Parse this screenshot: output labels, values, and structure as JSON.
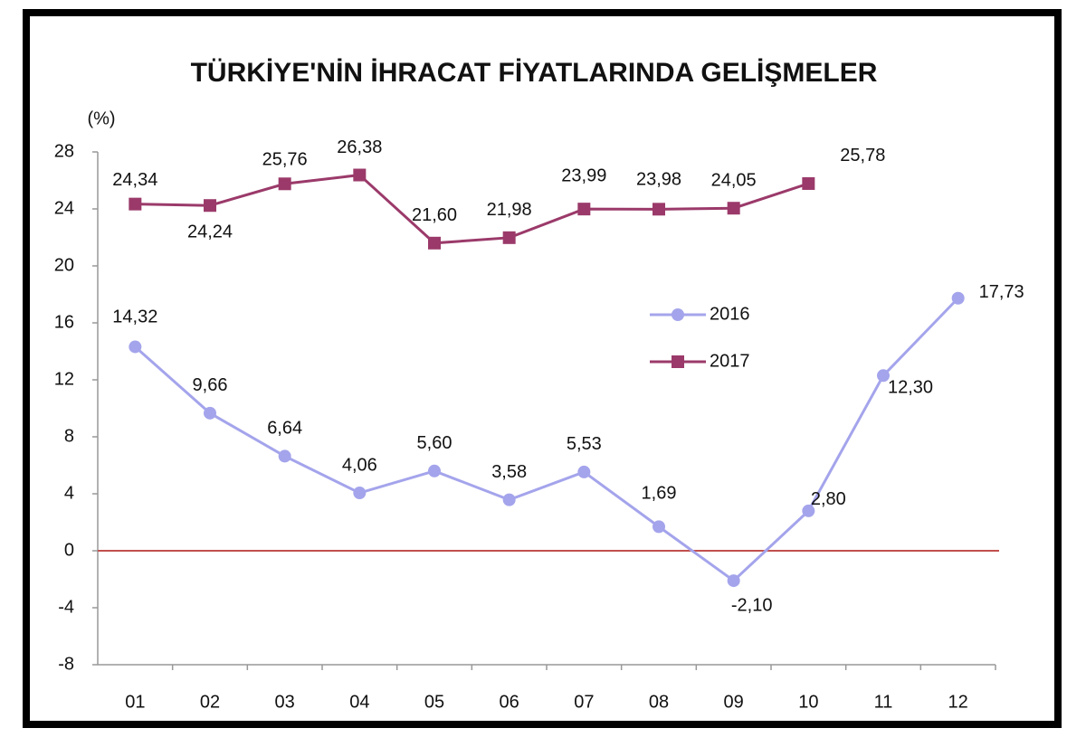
{
  "chart_data": {
    "type": "line",
    "title": "TÜRKİYE'NİN İHRACAT FİYATLARINDA GELİŞMELER",
    "y_label": "(%)",
    "categories": [
      "01",
      "02",
      "03",
      "04",
      "05",
      "06",
      "07",
      "08",
      "09",
      "10",
      "11",
      "12"
    ],
    "series": [
      {
        "name": "2016",
        "color": "#a4a4ec",
        "marker": "circle",
        "values": [
          14.32,
          9.66,
          6.64,
          4.06,
          5.6,
          3.58,
          5.53,
          1.69,
          -2.1,
          2.8,
          12.3,
          17.73
        ],
        "value_labels": [
          "14,32",
          "9,66",
          "6,64",
          "4,06",
          "5,60",
          "3,58",
          "5,53",
          "1,69",
          "-2,10",
          "2,80",
          "12,30",
          "17,73"
        ]
      },
      {
        "name": "2017",
        "color": "#9b3a6a",
        "marker": "square",
        "values": [
          24.34,
          24.24,
          25.76,
          26.38,
          21.6,
          21.98,
          23.99,
          23.98,
          24.05,
          25.78,
          null,
          null
        ],
        "value_labels": [
          "24,34",
          "24,24",
          "25,76",
          "26,38",
          "21,60",
          "21,98",
          "23,99",
          "23,98",
          "24,05",
          "25,78",
          null,
          null
        ]
      }
    ],
    "ylim": [
      -8,
      28
    ],
    "yticks": [
      -8,
      -4,
      0,
      4,
      8,
      12,
      16,
      20,
      24,
      28
    ],
    "zero_line_color": "#c0504d",
    "legend": "center-right"
  }
}
